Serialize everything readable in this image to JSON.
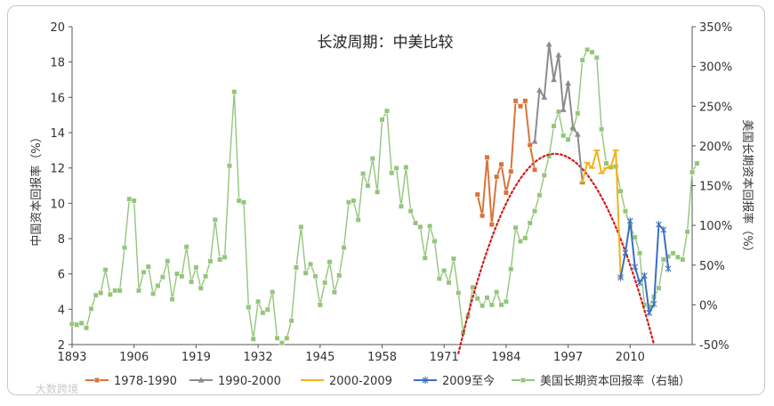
{
  "chart_data": {
    "type": "line",
    "title": "长波周期：中美比较",
    "ylabel_left": "中国资本回报率（%）",
    "ylabel_right": "美国长期资本回报率（%）",
    "ylim_left": [
      2,
      20
    ],
    "yticks_left": [
      "2",
      "4",
      "6",
      "8",
      "10",
      "12",
      "14",
      "16",
      "18",
      "20"
    ],
    "ylim_right": [
      -50,
      350
    ],
    "yticks_right": [
      "-50%",
      "0%",
      "50%",
      "100%",
      "150%",
      "200%",
      "250%",
      "300%",
      "350%"
    ],
    "xlim": [
      1893,
      2023
    ],
    "xticks": [
      "1893",
      "1906",
      "1919",
      "1932",
      "1945",
      "1958",
      "1971",
      "1984",
      "1997",
      "2010"
    ],
    "grid": false,
    "legend_position": "bottom",
    "series": [
      {
        "name": "1978-1990",
        "axis": "left",
        "color": "#d9743a",
        "marker": "square",
        "points": [
          [
            1978,
            10.5
          ],
          [
            1979,
            9.3
          ],
          [
            1980,
            12.6
          ],
          [
            1981,
            8.8
          ],
          [
            1982,
            11.5
          ],
          [
            1983,
            12.2
          ],
          [
            1984,
            10.6
          ],
          [
            1985,
            11.8
          ],
          [
            1986,
            15.8
          ],
          [
            1987,
            15.5
          ],
          [
            1988,
            15.8
          ],
          [
            1989,
            13.3
          ],
          [
            1990,
            11.9
          ]
        ]
      },
      {
        "name": "1990-2000",
        "axis": "left",
        "color": "#8c8c8c",
        "marker": "triangle",
        "points": [
          [
            1990,
            13.5
          ],
          [
            1991,
            16.4
          ],
          [
            1992,
            16.0
          ],
          [
            1993,
            19.0
          ],
          [
            1994,
            17.0
          ],
          [
            1995,
            18.4
          ],
          [
            1996,
            15.3
          ],
          [
            1997,
            16.8
          ],
          [
            1998,
            14.3
          ],
          [
            1999,
            13.9
          ],
          [
            2000,
            11.2
          ]
        ]
      },
      {
        "name": "2000-2009",
        "axis": "left",
        "color": "#f2b21a",
        "marker": "dash",
        "points": [
          [
            2000,
            11.2
          ],
          [
            2001,
            12.3
          ],
          [
            2002,
            12.0
          ],
          [
            2003,
            13.0
          ],
          [
            2004,
            11.7
          ],
          [
            2005,
            12.0
          ],
          [
            2006,
            12.1
          ],
          [
            2007,
            13.0
          ],
          [
            2008,
            5.8
          ]
        ]
      },
      {
        "name": "2009至今",
        "axis": "left",
        "color": "#3a6fc2",
        "marker": "star",
        "points": [
          [
            2008,
            5.8
          ],
          [
            2009,
            7.2
          ],
          [
            2010,
            9.0
          ],
          [
            2011,
            6.4
          ],
          [
            2012,
            5.5
          ],
          [
            2013,
            5.9
          ],
          [
            2014,
            3.8
          ],
          [
            2015,
            4.3
          ],
          [
            2016,
            8.8
          ],
          [
            2017,
            8.5
          ],
          [
            2018,
            6.3
          ]
        ]
      },
      {
        "name": "美国长期资本回报率（右轴）",
        "axis": "right",
        "color": "#94c57c",
        "marker": "square",
        "points": [
          [
            1893,
            -24
          ],
          [
            1894,
            -25
          ],
          [
            1895,
            -23
          ],
          [
            1896,
            -29
          ],
          [
            1897,
            -5
          ],
          [
            1898,
            12
          ],
          [
            1899,
            15
          ],
          [
            1900,
            44
          ],
          [
            1901,
            13
          ],
          [
            1902,
            18
          ],
          [
            1903,
            18
          ],
          [
            1904,
            72
          ],
          [
            1905,
            133
          ],
          [
            1906,
            131
          ],
          [
            1907,
            18
          ],
          [
            1908,
            41
          ],
          [
            1909,
            48
          ],
          [
            1910,
            14
          ],
          [
            1911,
            24
          ],
          [
            1912,
            35
          ],
          [
            1913,
            55
          ],
          [
            1914,
            7
          ],
          [
            1915,
            39
          ],
          [
            1916,
            36
          ],
          [
            1917,
            73
          ],
          [
            1918,
            29
          ],
          [
            1919,
            47
          ],
          [
            1920,
            21
          ],
          [
            1921,
            36
          ],
          [
            1922,
            55
          ],
          [
            1923,
            107
          ],
          [
            1924,
            57
          ],
          [
            1925,
            60
          ],
          [
            1926,
            175
          ],
          [
            1927,
            268
          ],
          [
            1928,
            131
          ],
          [
            1929,
            129
          ],
          [
            1930,
            -3
          ],
          [
            1931,
            -43
          ],
          [
            1932,
            4
          ],
          [
            1933,
            -10
          ],
          [
            1934,
            -6
          ],
          [
            1935,
            16
          ],
          [
            1936,
            -42
          ],
          [
            1937,
            -48
          ],
          [
            1938,
            -42
          ],
          [
            1939,
            -20
          ],
          [
            1940,
            47
          ],
          [
            1941,
            98
          ],
          [
            1942,
            40
          ],
          [
            1943,
            51
          ],
          [
            1944,
            36
          ],
          [
            1945,
            0
          ],
          [
            1946,
            28
          ],
          [
            1947,
            54
          ],
          [
            1948,
            16
          ],
          [
            1949,
            37
          ],
          [
            1950,
            72
          ],
          [
            1951,
            129
          ],
          [
            1952,
            131
          ],
          [
            1953,
            107
          ],
          [
            1954,
            165
          ],
          [
            1955,
            150
          ],
          [
            1956,
            184
          ],
          [
            1957,
            142
          ],
          [
            1958,
            233
          ],
          [
            1959,
            244
          ],
          [
            1960,
            166
          ],
          [
            1961,
            172
          ],
          [
            1962,
            124
          ],
          [
            1963,
            173
          ],
          [
            1964,
            118
          ],
          [
            1965,
            103
          ],
          [
            1966,
            98
          ],
          [
            1967,
            59
          ],
          [
            1968,
            99
          ],
          [
            1969,
            80
          ],
          [
            1970,
            33
          ],
          [
            1971,
            43
          ],
          [
            1972,
            28
          ],
          [
            1973,
            58
          ],
          [
            1974,
            15
          ],
          [
            1975,
            -35
          ],
          [
            1976,
            -14
          ],
          [
            1977,
            22
          ],
          [
            1978,
            8
          ],
          [
            1979,
            -1
          ],
          [
            1980,
            9
          ],
          [
            1981,
            0
          ],
          [
            1982,
            16
          ],
          [
            1983,
            0
          ],
          [
            1984,
            4
          ],
          [
            1985,
            45
          ],
          [
            1986,
            97
          ],
          [
            1987,
            80
          ],
          [
            1988,
            84
          ],
          [
            1989,
            103
          ],
          [
            1990,
            118
          ],
          [
            1991,
            138
          ],
          [
            1992,
            163
          ],
          [
            1993,
            187
          ],
          [
            1994,
            225
          ],
          [
            1995,
            243
          ],
          [
            1996,
            213
          ],
          [
            1997,
            208
          ],
          [
            1998,
            221
          ],
          [
            1999,
            241
          ],
          [
            2000,
            308
          ],
          [
            2001,
            321
          ],
          [
            2002,
            318
          ],
          [
            2003,
            311
          ],
          [
            2004,
            221
          ],
          [
            2005,
            178
          ],
          [
            2006,
            173
          ],
          [
            2007,
            174
          ],
          [
            2008,
            143
          ],
          [
            2009,
            118
          ],
          [
            2010,
            99
          ],
          [
            2011,
            85
          ],
          [
            2012,
            65
          ],
          [
            2013,
            0
          ],
          [
            2014,
            -2
          ],
          [
            2015,
            10
          ],
          [
            2016,
            21
          ],
          [
            2017,
            57
          ],
          [
            2018,
            61
          ],
          [
            2019,
            65
          ],
          [
            2020,
            60
          ],
          [
            2021,
            57
          ],
          [
            2022,
            92
          ],
          [
            2023,
            167
          ],
          [
            2024,
            178
          ]
        ]
      },
      {
        "name": "trend",
        "axis": "left",
        "color": "#d01c1c",
        "style": "dotted",
        "shape": "parabola",
        "points": [
          [
            1974,
            1.5
          ],
          [
            1978,
            5.4
          ],
          [
            1984,
            9.8
          ],
          [
            1990,
            12.2
          ],
          [
            1994,
            12.8
          ],
          [
            1998,
            12.5
          ],
          [
            2004,
            10.6
          ],
          [
            2010,
            6.6
          ],
          [
            2015,
            2.0
          ]
        ]
      }
    ]
  },
  "watermark": "大数跨境"
}
